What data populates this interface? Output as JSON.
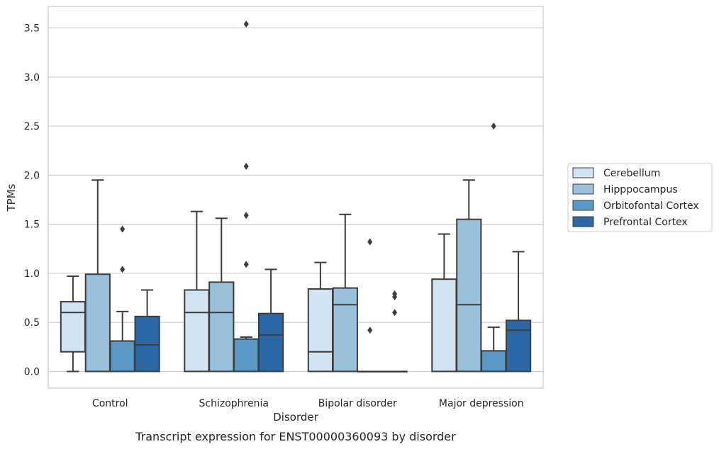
{
  "chart_data": {
    "type": "box",
    "title": "",
    "caption": "Transcript expression for ENST00000360093 by disorder",
    "xlabel": "Disorder",
    "ylabel": "TPMs",
    "ylim": [
      -0.17,
      3.72
    ],
    "yticks": [
      0.0,
      0.5,
      1.0,
      1.5,
      2.0,
      2.5,
      3.0,
      3.5
    ],
    "ytick_labels": [
      "0.0",
      "0.5",
      "1.0",
      "1.5",
      "2.0",
      "2.5",
      "3.0",
      "3.5"
    ],
    "grid": true,
    "legend_position": "right",
    "categories": [
      "Control",
      "Schizophrenia",
      "Bipolar disorder",
      "Major depression"
    ],
    "series": [
      {
        "name": "Cerebellum",
        "color": "#d3e3f1",
        "boxes": [
          {
            "whislo": 0.0,
            "q1": 0.2,
            "med": 0.6,
            "q3": 0.71,
            "whishi": 0.97,
            "fliers": []
          },
          {
            "whislo": 0.0,
            "q1": 0.0,
            "med": 0.6,
            "q3": 0.83,
            "whishi": 1.63,
            "fliers": []
          },
          {
            "whislo": 0.0,
            "q1": 0.0,
            "med": 0.2,
            "q3": 0.84,
            "whishi": 1.11,
            "fliers": []
          },
          {
            "whislo": 0.0,
            "q1": 0.0,
            "med": 0.0,
            "q3": 0.94,
            "whishi": 1.4,
            "fliers": []
          }
        ]
      },
      {
        "name": "Hipppocampus",
        "color": "#9ac1d9",
        "boxes": [
          {
            "whislo": 0.0,
            "q1": 0.0,
            "med": 0.0,
            "q3": 0.99,
            "whishi": 1.95,
            "fliers": []
          },
          {
            "whislo": 0.0,
            "q1": 0.0,
            "med": 0.6,
            "q3": 0.91,
            "whishi": 1.56,
            "fliers": []
          },
          {
            "whislo": 0.0,
            "q1": 0.0,
            "med": 0.68,
            "q3": 0.85,
            "whishi": 1.6,
            "fliers": []
          },
          {
            "whislo": 0.0,
            "q1": 0.0,
            "med": 0.68,
            "q3": 1.55,
            "whishi": 1.95,
            "fliers": []
          }
        ]
      },
      {
        "name": "Orbitofontal Cortex",
        "color": "#5a98c5",
        "boxes": [
          {
            "whislo": 0.0,
            "q1": 0.0,
            "med": 0.0,
            "q3": 0.31,
            "whishi": 0.61,
            "fliers": [
              1.04,
              1.45
            ]
          },
          {
            "whislo": 0.0,
            "q1": 0.0,
            "med": 0.0,
            "q3": 0.33,
            "whishi": 0.35,
            "fliers": [
              1.09,
              1.59,
              2.09,
              3.54
            ]
          },
          {
            "whislo": 0.0,
            "q1": 0.0,
            "med": 0.0,
            "q3": 0.0,
            "whishi": 0.0,
            "fliers": [
              0.42,
              1.32
            ]
          },
          {
            "whislo": 0.0,
            "q1": 0.0,
            "med": 0.0,
            "q3": 0.21,
            "whishi": 0.45,
            "fliers": [
              2.5
            ]
          }
        ]
      },
      {
        "name": "Prefrontal Cortex",
        "color": "#2c68a6",
        "boxes": [
          {
            "whislo": 0.0,
            "q1": 0.0,
            "med": 0.27,
            "q3": 0.56,
            "whishi": 0.83,
            "fliers": []
          },
          {
            "whislo": 0.0,
            "q1": 0.0,
            "med": 0.37,
            "q3": 0.59,
            "whishi": 1.04,
            "fliers": []
          },
          {
            "whislo": 0.0,
            "q1": 0.0,
            "med": 0.0,
            "q3": 0.0,
            "whishi": 0.0,
            "fliers": [
              0.6,
              0.76,
              0.79
            ]
          },
          {
            "whislo": 0.0,
            "q1": 0.0,
            "med": 0.42,
            "q3": 0.52,
            "whishi": 1.22,
            "fliers": []
          }
        ]
      }
    ]
  }
}
